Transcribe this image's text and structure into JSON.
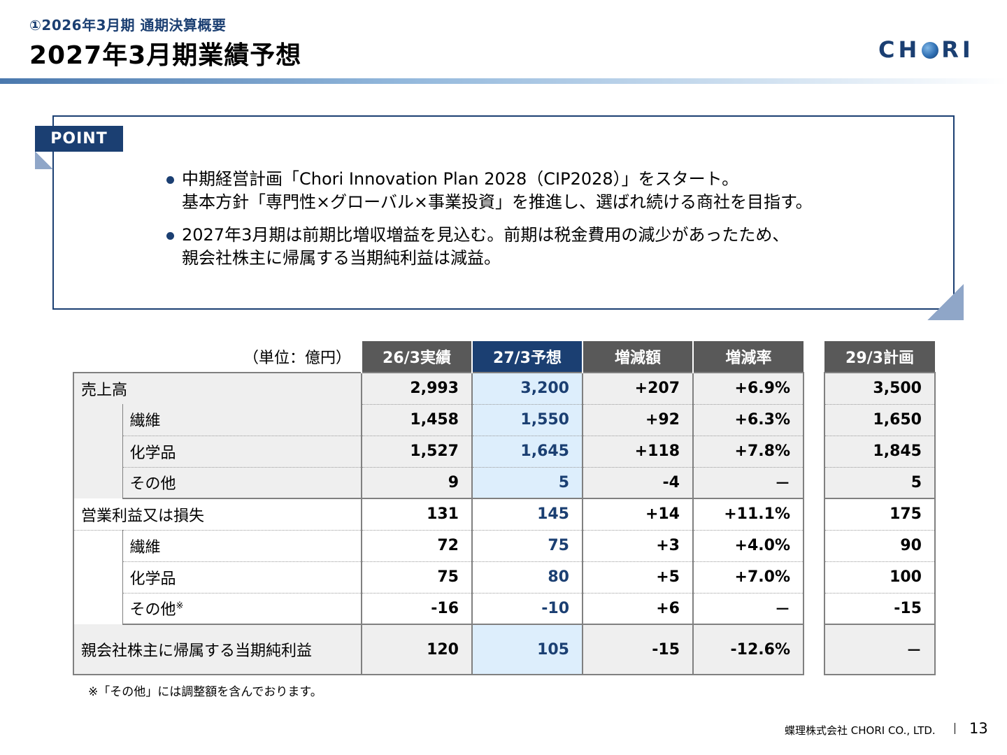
{
  "header": {
    "subtitle": "①2026年3月期 通期決算概要",
    "title": "2027年3月期業績予想",
    "logo_text_left": "CH",
    "logo_text_right": "RI"
  },
  "point": {
    "label": "POINT",
    "bullets": [
      {
        "lines": [
          "中期経営計画「Chori Innovation Plan 2028（CIP2028）」をスタート。",
          "基本方針「専門性×グローバル×事業投資」を推進し、選ばれ続ける商社を目指す。"
        ]
      },
      {
        "lines": [
          "2027年3月期は前期比増収増益を見込む。前期は税金費用の減少があったため、",
          "親会社株主に帰属する当期純利益は減益。"
        ]
      }
    ]
  },
  "table": {
    "unit": "（単位：億円）",
    "columns": [
      "26/3実績",
      "27/3予想",
      "増減額",
      "増減率",
      "29/3計画"
    ],
    "rows": [
      {
        "label": "売上高",
        "values": [
          "2,993",
          "3,200",
          "+207",
          "+6.9%",
          "3,500"
        ]
      },
      {
        "label": "繊維",
        "values": [
          "1,458",
          "1,550",
          "+92",
          "+6.3%",
          "1,650"
        ]
      },
      {
        "label": "化学品",
        "values": [
          "1,527",
          "1,645",
          "+118",
          "+7.8%",
          "1,845"
        ]
      },
      {
        "label": "その他",
        "values": [
          "9",
          "5",
          "-4",
          "－",
          "5"
        ]
      },
      {
        "label": "営業利益又は損失",
        "values": [
          "131",
          "145",
          "+14",
          "+11.1%",
          "175"
        ]
      },
      {
        "label": "繊維",
        "values": [
          "72",
          "75",
          "+3",
          "+4.0%",
          "90"
        ]
      },
      {
        "label": "化学品",
        "values": [
          "75",
          "80",
          "+5",
          "+7.0%",
          "100"
        ]
      },
      {
        "label": "その他",
        "note_mark": "※",
        "values": [
          "-16",
          "-10",
          "+6",
          "－",
          "-15"
        ]
      },
      {
        "label": "親会社株主に帰属する当期純利益",
        "values": [
          "120",
          "105",
          "-15",
          "-12.6%",
          "－"
        ]
      }
    ]
  },
  "footnote": "※「その他」には調整額を含んでおります。",
  "footer": {
    "company": "蝶理株式会社 CHORI CO., LTD.",
    "page": "13"
  }
}
